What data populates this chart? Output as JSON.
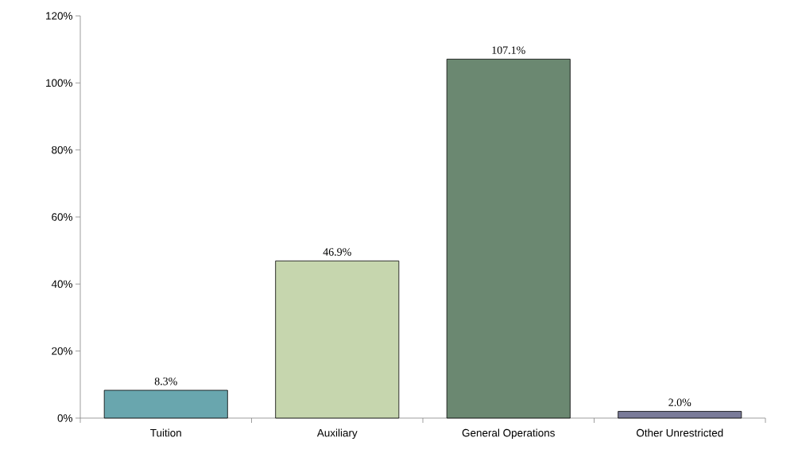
{
  "chart_data": {
    "type": "bar",
    "categories": [
      "Tuition",
      "Auxiliary",
      "General Operations",
      "Other Unrestricted"
    ],
    "values": [
      8.3,
      46.9,
      107.1,
      2.0
    ],
    "colors": [
      "#69a6ae",
      "#c6d6ae",
      "#6b8871",
      "#7a7b99"
    ],
    "value_labels": [
      "8.3%",
      "46.9%",
      "107.1%",
      "2.0%"
    ],
    "ylim": [
      0,
      120
    ],
    "yticks": [
      {
        "value": 0,
        "label": "0%"
      },
      {
        "value": 20,
        "label": "20%"
      },
      {
        "value": 40,
        "label": "40%"
      },
      {
        "value": 60,
        "label": "60%"
      },
      {
        "value": 80,
        "label": "80%"
      },
      {
        "value": 100,
        "label": "100%"
      },
      {
        "value": 120,
        "label": "120%"
      }
    ]
  }
}
